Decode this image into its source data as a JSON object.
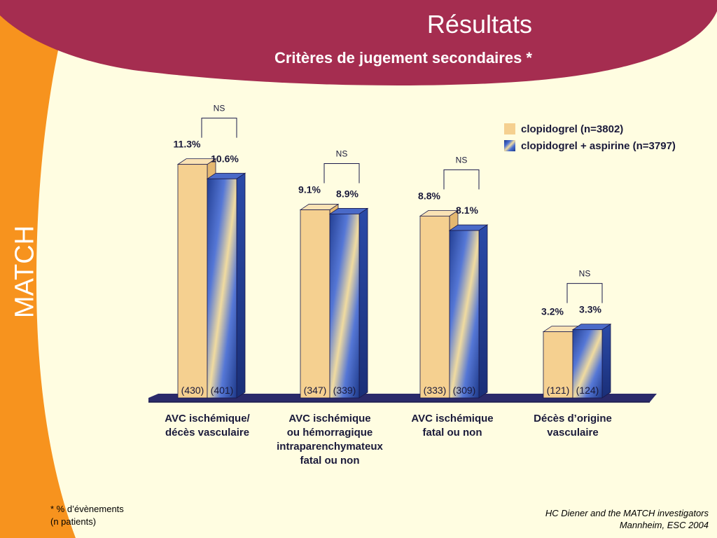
{
  "slide": {
    "title": "Résultats",
    "subtitle": "Critères de jugement secondaires *",
    "side_label": "MATCH",
    "footnote_line1": "* % d’évènements",
    "footnote_line2": "(n patients)",
    "credit_line1": "HC Diener and the MATCH investigators",
    "credit_line2": "Mannheim, ESC 2004",
    "colors": {
      "background": "#fffde1",
      "header_band": "#a52d50",
      "side_band": "#f7931e",
      "series1": "#f5d090",
      "series2_dark": "#1e3a8a",
      "axis": "#2a2a6a"
    }
  },
  "legend": {
    "items": [
      {
        "label": "clopidogrel (n=3802)"
      },
      {
        "label": "clopidogrel + aspirine (n=3797)"
      }
    ]
  },
  "chart_data": {
    "type": "bar",
    "categories": [
      "AVC ischémique/\ndécès vasculaire",
      "AVC ischémique\nou hémorragique\nintraparenchymateux\nfatal ou non",
      "AVC ischémique\nfatal ou non",
      "Décès d’origine\nvasculaire"
    ],
    "series": [
      {
        "name": "clopidogrel (n=3802)",
        "values": [
          11.3,
          9.1,
          8.8,
          3.2
        ],
        "labels": [
          "11.3%",
          "9.1%",
          "8.8%",
          "3.2%"
        ],
        "counts": [
          "(430)",
          "(347)",
          "(333)",
          "(121)"
        ]
      },
      {
        "name": "clopidogrel + aspirine (n=3797)",
        "values": [
          10.6,
          8.9,
          8.1,
          3.3
        ],
        "labels": [
          "10.6%",
          "8.9%",
          "8.1%",
          "3.3%"
        ],
        "counts": [
          "(401)",
          "(339)",
          "(309)",
          "(124)"
        ]
      }
    ],
    "significance": [
      "NS",
      "NS",
      "NS",
      "NS"
    ],
    "title": "Critères de jugement secondaires *",
    "xlabel": "",
    "ylabel": "",
    "ylim": [
      0,
      12
    ],
    "grid": false,
    "legend_position": "top-right"
  }
}
